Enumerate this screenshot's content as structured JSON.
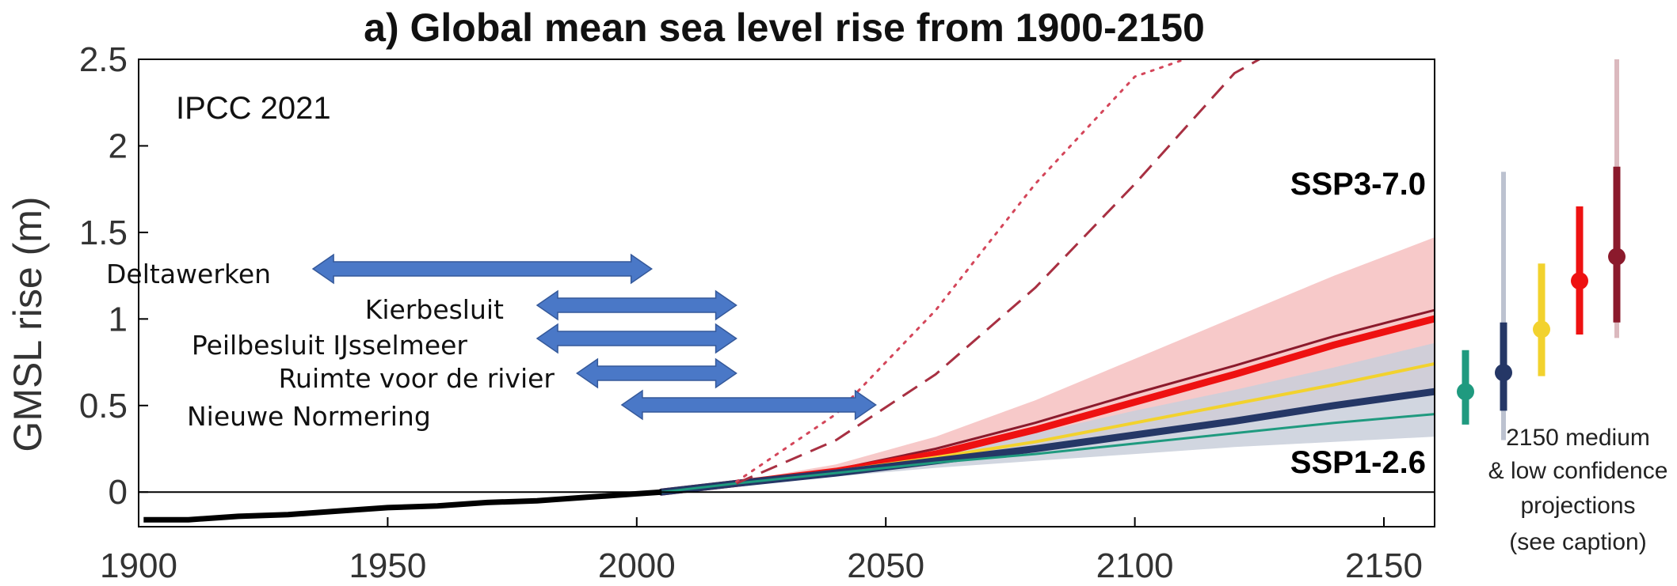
{
  "chart_data": {
    "type": "line",
    "title": "a) Global mean sea level rise from 1900-2150",
    "source_label": "IPCC 2021",
    "xlabel": "",
    "ylabel": "GMSL rise (m)",
    "xlim": [
      1900,
      2160
    ],
    "ylim": [
      -0.2,
      2.5
    ],
    "x_ticks": [
      1900,
      1950,
      2000,
      2050,
      2100,
      2150
    ],
    "y_ticks": [
      0,
      0.5,
      1,
      1.5,
      2,
      2.5
    ],
    "y_tick_labels": [
      "0",
      "0.5",
      "1",
      "1.5",
      "2",
      "2.5"
    ],
    "grid": false,
    "observed": {
      "x": [
        1901,
        1910,
        1920,
        1930,
        1940,
        1950,
        1960,
        1970,
        1980,
        1990,
        2000,
        2005
      ],
      "y": [
        -0.16,
        -0.16,
        -0.14,
        -0.13,
        -0.11,
        -0.09,
        -0.08,
        -0.06,
        -0.05,
        -0.03,
        -0.01,
        0.0
      ],
      "color": "#000000"
    },
    "series": [
      {
        "x": [
          2005,
          2020,
          2040,
          2060,
          2080,
          2100,
          2120,
          2140,
          2160
        ],
        "y": [
          0.0,
          0.05,
          0.13,
          0.25,
          0.4,
          0.57,
          0.73,
          0.9,
          1.05
        ],
        "color": "#8b1a2c",
        "width": 3,
        "style": "solid"
      },
      {
        "x": [
          2005,
          2020,
          2040,
          2060,
          2080,
          2100,
          2120,
          2140,
          2160
        ],
        "y": [
          0.0,
          0.05,
          0.12,
          0.22,
          0.36,
          0.52,
          0.68,
          0.85,
          1.0
        ],
        "color": "#ee1111",
        "width": 9,
        "style": "solid"
      },
      {
        "x": [
          2005,
          2020,
          2040,
          2060,
          2080,
          2100,
          2120,
          2140,
          2160
        ],
        "y": [
          0.0,
          0.05,
          0.12,
          0.2,
          0.29,
          0.4,
          0.51,
          0.62,
          0.74
        ],
        "color": "#f2d22e",
        "width": 4,
        "style": "solid"
      },
      {
        "x": [
          2005,
          2020,
          2040,
          2060,
          2080,
          2100,
          2120,
          2140,
          2160
        ],
        "y": [
          0.0,
          0.05,
          0.11,
          0.18,
          0.25,
          0.33,
          0.41,
          0.5,
          0.58
        ],
        "color": "#253766",
        "width": 9,
        "style": "solid"
      },
      {
        "x": [
          2005,
          2020,
          2040,
          2060,
          2080,
          2100,
          2120,
          2140,
          2160
        ],
        "y": [
          0.0,
          0.05,
          0.11,
          0.17,
          0.22,
          0.28,
          0.34,
          0.4,
          0.45
        ],
        "color": "#1f9a7f",
        "width": 3,
        "style": "solid"
      },
      {
        "x": [
          2020,
          2040,
          2060,
          2080,
          2100,
          2120,
          2125
        ],
        "y": [
          0.05,
          0.3,
          0.68,
          1.18,
          1.78,
          2.42,
          2.5
        ],
        "color": "#a83042",
        "width": 3,
        "style": "dashed"
      },
      {
        "x": [
          2020,
          2040,
          2060,
          2080,
          2100,
          2110
        ],
        "y": [
          0.06,
          0.45,
          1.05,
          1.78,
          2.4,
          2.5
        ],
        "color": "#d4465a",
        "width": 3,
        "style": "dotted"
      }
    ],
    "bands": [
      {
        "x": [
          2005,
          2020,
          2040,
          2060,
          2080,
          2100,
          2120,
          2140,
          2160
        ],
        "lower": [
          0.0,
          0.04,
          0.1,
          0.17,
          0.25,
          0.34,
          0.43,
          0.52,
          0.6
        ],
        "upper": [
          0.0,
          0.06,
          0.16,
          0.32,
          0.53,
          0.77,
          1.01,
          1.25,
          1.47
        ],
        "color": "#f6bfc0"
      },
      {
        "x": [
          2005,
          2020,
          2040,
          2060,
          2080,
          2100,
          2120,
          2140,
          2160
        ],
        "lower": [
          0.0,
          0.04,
          0.09,
          0.14,
          0.18,
          0.22,
          0.26,
          0.29,
          0.32
        ],
        "upper": [
          0.0,
          0.06,
          0.13,
          0.23,
          0.34,
          0.47,
          0.59,
          0.72,
          0.86
        ],
        "color": "#c9cfda"
      }
    ],
    "scenario_labels": [
      {
        "text": "SSP3-7.0",
        "color": "#ee1111"
      },
      {
        "text": "SSP1-2.6",
        "color": "#253766"
      }
    ],
    "policy_periods": [
      {
        "name": "Deltawerken",
        "start": 1935,
        "end": 2003
      },
      {
        "name": "Kierbesluit",
        "start": 1980,
        "end": 2020
      },
      {
        "name": "Peilbesluit IJsselmeer",
        "start": 1980,
        "end": 2020
      },
      {
        "name": "Ruimte voor de rivier",
        "start": 1988,
        "end": 2020
      },
      {
        "name": "Nieuwe Normering",
        "start": 1997,
        "end": 2048
      }
    ],
    "projections_2150": {
      "caption": [
        "2150 medium",
        "& low confidence",
        "projections",
        "(see caption)"
      ],
      "items": [
        {
          "median": 0.58,
          "likely": [
            0.39,
            0.82
          ],
          "color": "#1f9a7f"
        },
        {
          "median": 0.69,
          "likely": [
            0.47,
            0.98
          ],
          "very_likely": [
            0.3,
            1.85
          ],
          "color": "#253766"
        },
        {
          "median": 0.94,
          "likely": [
            0.67,
            1.32
          ],
          "color": "#f2d22e"
        },
        {
          "median": 1.22,
          "likely": [
            0.91,
            1.65
          ],
          "color": "#ee1111"
        },
        {
          "median": 1.36,
          "likely": [
            0.98,
            1.88
          ],
          "very_likely": [
            0.89,
            2.5
          ],
          "color": "#8b1a2c"
        }
      ]
    }
  }
}
